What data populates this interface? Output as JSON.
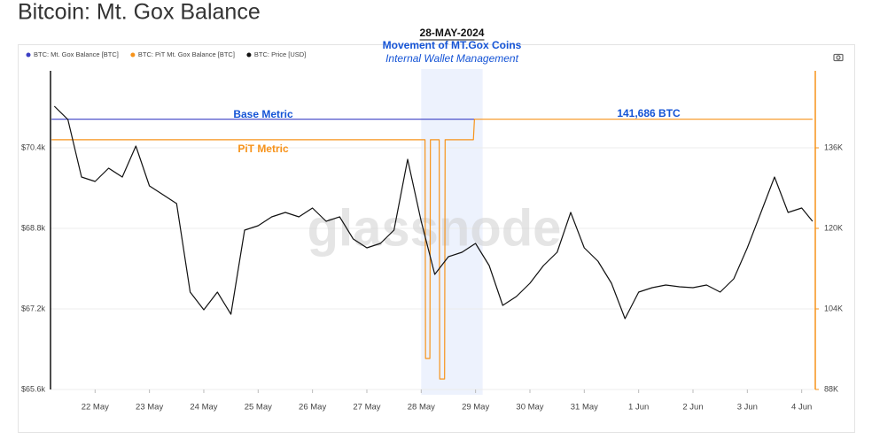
{
  "title": "Bitcoin: Mt. Gox Balance",
  "chart_data": {
    "type": "line",
    "watermark": "glassnode",
    "annotations": {
      "date": "28-MAY-2024",
      "headline": "Movement of MT.Gox Coins",
      "subline": "Internal Wallet Management",
      "base_label": "Base Metric",
      "pit_label": "PiT Metric",
      "value_label": "141,686 BTC"
    },
    "highlight": [
      6,
      7.13
    ],
    "xlim": [
      -0.82,
      13.25
    ],
    "xticks": [
      {
        "value": 0,
        "label": "22 May"
      },
      {
        "value": 1,
        "label": "23 May"
      },
      {
        "value": 2,
        "label": "24 May"
      },
      {
        "value": 3,
        "label": "25 May"
      },
      {
        "value": 4,
        "label": "26 May"
      },
      {
        "value": 5,
        "label": "27 May"
      },
      {
        "value": 6,
        "label": "28 May"
      },
      {
        "value": 7,
        "label": "29 May"
      },
      {
        "value": 8,
        "label": "30 May"
      },
      {
        "value": 9,
        "label": "31 May"
      },
      {
        "value": 10,
        "label": "1 Jun"
      },
      {
        "value": 11,
        "label": "2 Jun"
      },
      {
        "value": 12,
        "label": "3 Jun"
      },
      {
        "value": 13,
        "label": "4 Jun"
      }
    ],
    "ylim": [
      65600,
      71930
    ],
    "yticks": [
      {
        "value": 65600,
        "label": "$65.6k"
      },
      {
        "value": 67200,
        "label": "$67.2k"
      },
      {
        "value": 68800,
        "label": "$68.8k"
      },
      {
        "value": 70400,
        "label": "$70.4k"
      }
    ],
    "y2lim": [
      88000,
      151300
    ],
    "y2ticks": [
      {
        "value": 88000,
        "label": "88K"
      },
      {
        "value": 104000,
        "label": "104K"
      },
      {
        "value": 120000,
        "label": "120K"
      },
      {
        "value": 136000,
        "label": "136K"
      }
    ],
    "grid": true,
    "series": [
      {
        "name": "BTC: Mt. Gox Balance [BTC]",
        "color": "#3b3fc4",
        "axis": "y2",
        "x": [
          -0.8,
          6.98
        ],
        "values": [
          141686,
          141686
        ]
      },
      {
        "name": "BTC: PiT Mt. Gox Balance [BTC]",
        "color": "#f7931a",
        "axis": "y2",
        "x": [
          -0.8,
          6.07,
          6.08,
          6.16,
          6.17,
          6.33,
          6.34,
          6.43,
          6.44,
          6.96,
          6.98,
          13.2
        ],
        "values": [
          137600,
          137600,
          94150,
          94150,
          137600,
          137600,
          90100,
          90100,
          137600,
          137600,
          141686,
          141686
        ]
      },
      {
        "name": "BTC: Price [USD]",
        "color": "#111111",
        "x": [
          -0.75,
          -0.5,
          -0.25,
          0,
          0.25,
          0.5,
          0.75,
          1,
          1.25,
          1.5,
          1.75,
          2,
          2.25,
          2.5,
          2.75,
          3,
          3.25,
          3.5,
          3.75,
          4,
          4.25,
          4.5,
          4.75,
          5,
          5.25,
          5.5,
          5.75,
          6,
          6.25,
          6.5,
          6.75,
          7,
          7.25,
          7.5,
          7.75,
          8,
          8.25,
          8.5,
          8.75,
          9,
          9.25,
          9.5,
          9.75,
          10,
          10.25,
          10.5,
          10.75,
          11,
          11.25,
          11.5,
          11.75,
          12,
          12.25,
          12.5,
          12.75,
          13,
          13.2
        ],
        "values": [
          71226,
          70963,
          69820,
          69732,
          69996,
          69820,
          70435,
          69644,
          69468,
          69292,
          67534,
          67182,
          67534,
          67094,
          68765,
          68853,
          69028,
          69116,
          69028,
          69204,
          68941,
          69028,
          68589,
          68413,
          68501,
          68765,
          70172,
          68941,
          67886,
          68237,
          68325,
          68501,
          68062,
          67270,
          67446,
          67710,
          68062,
          68325,
          69116,
          68413,
          68150,
          67710,
          67007,
          67534,
          67622,
          67675,
          67640,
          67622,
          67675,
          67534,
          67798,
          68413,
          69116,
          69820,
          69116,
          69204,
          68941
        ]
      }
    ]
  }
}
